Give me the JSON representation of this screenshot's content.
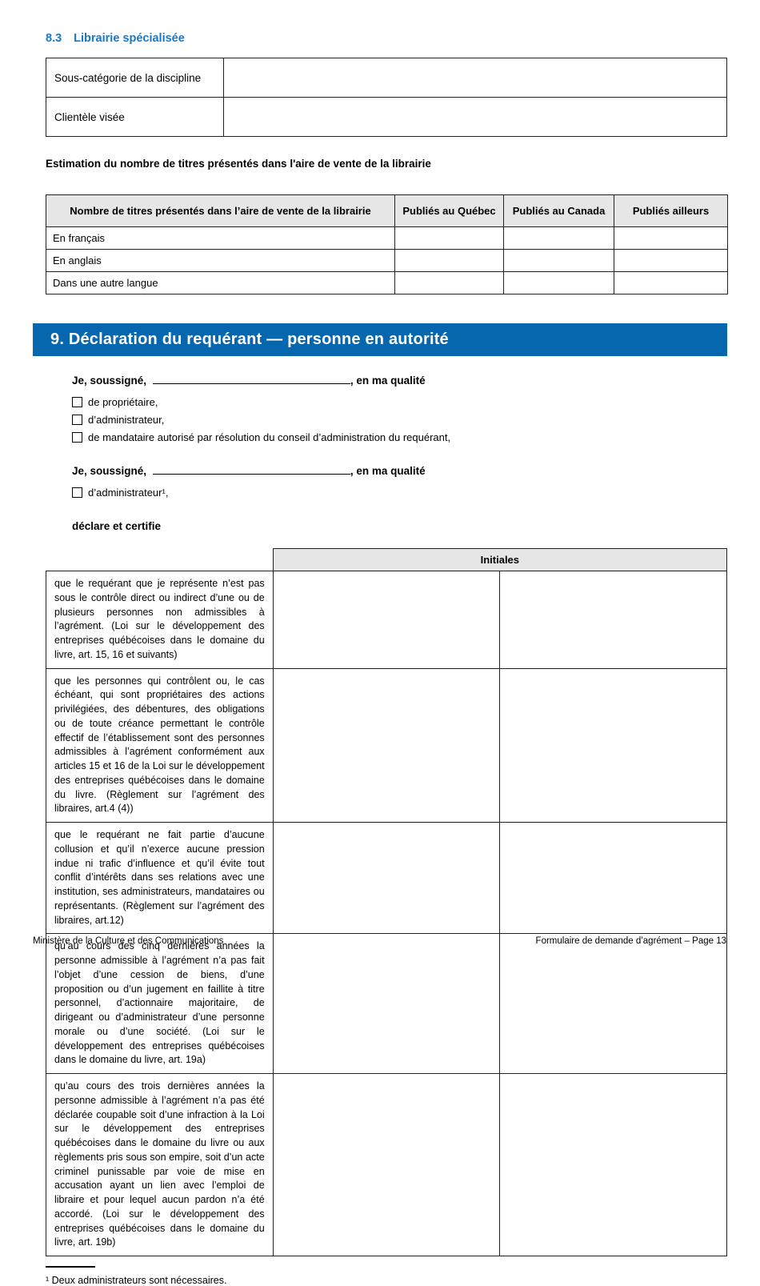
{
  "section_heading": {
    "number": "8.3",
    "title": "Librairie spécialisée"
  },
  "specialty_table": {
    "rows": [
      {
        "label": "Sous-catégorie de la discipline",
        "value": ""
      },
      {
        "label": "Clientèle visée",
        "value": ""
      }
    ]
  },
  "estimation_heading": "Estimation du nombre de titres présentés dans l'aire de vente de la librairie",
  "titles_table": {
    "headers": [
      "Nombre de titres présentés dans l’aire de vente de la librairie",
      "Publiés au Québec",
      "Publiés au Canada",
      "Publiés ailleurs"
    ],
    "rows": [
      {
        "label": "En français",
        "quebec": "",
        "canada": "",
        "ailleurs": ""
      },
      {
        "label": "En anglais",
        "quebec": "",
        "canada": "",
        "ailleurs": ""
      },
      {
        "label": "Dans une autre langue",
        "quebec": "",
        "canada": "",
        "ailleurs": ""
      }
    ]
  },
  "section9": {
    "banner": "9. Déclaration du requérant — personne en autorité",
    "declarant1": {
      "prefix": "Je, soussigné,",
      "signature_value": "",
      "suffix": ", en ma qualité",
      "options": [
        {
          "label": "de propriétaire,",
          "checked": false
        },
        {
          "label": "d’administrateur,",
          "checked": false
        },
        {
          "label": "de mandataire autorisé par résolution du conseil d’administration du requérant,",
          "checked": false
        }
      ]
    },
    "declarant2": {
      "prefix": "Je, soussigné,",
      "signature_value": "",
      "suffix": ", en ma qualité",
      "options": [
        {
          "label": "d’administrateur¹,",
          "checked": false
        }
      ]
    },
    "declare_label": "déclare et certifie",
    "initiales_header": "Initiales",
    "declarations": [
      {
        "text": "que le requérant que je représente n’est pas sous le contrôle direct ou indirect d’une ou de plusieurs personnes non admissibles à l’agrément. (Loi sur le développement des entreprises québécoises dans le domaine du livre, art. 15, 16 et suivants)",
        "initials_1": "",
        "initials_2": ""
      },
      {
        "text": "que les personnes qui contrôlent ou, le cas échéant, qui sont propriétaires des actions privilégiées, des débentures, des obligations ou de toute créance permettant le contrôle effectif de l’établissement sont des personnes admissibles à l’agrément conformément aux articles 15 et 16 de la Loi sur le développement des entreprises québécoises dans le domaine du livre. (Règlement sur l’agrément des libraires, art.4 (4))",
        "initials_1": "",
        "initials_2": ""
      },
      {
        "text": "que le requérant ne fait partie d’aucune collusion et qu’il n’exerce aucune pression indue ni trafic d’influence et qu’il évite tout conflit d’intérêts dans ses relations avec une institution, ses administrateurs, mandataires ou représentants. (Règlement sur l’agrément des libraires, art.12)",
        "initials_1": "",
        "initials_2": ""
      },
      {
        "text": "qu’au cours des cinq dernières années la personne admissible à l’agrément n’a pas fait l’objet d’une cession de biens, d’une proposition ou d’un jugement en faillite à titre personnel, d’actionnaire majoritaire, de dirigeant ou d’administrateur d’une personne morale ou d’une société. (Loi sur le développement des entreprises québécoises dans le domaine du livre, art. 19a)",
        "initials_1": "",
        "initials_2": ""
      },
      {
        "text": "qu’au cours des trois dernières années la personne admissible à l’agrément n’a pas été déclarée coupable soit d’une infraction à la Loi sur le développement des entreprises québécoises dans le domaine du livre ou aux règlements pris sous son empire, soit d’un acte criminel punissable par voie de mise en accusation ayant un lien avec l’emploi de libraire et pour lequel aucun pardon n’a été accordé. (Loi sur le développement des entreprises québécoises dans le domaine du livre, art. 19b)",
        "initials_1": "",
        "initials_2": ""
      }
    ]
  },
  "footnote": "¹ Deux administrateurs sont nécessaires.",
  "footer": {
    "left": "Ministère de la Culture et des Communications",
    "right": "Formulaire de demande d’agrément – Page 13"
  },
  "colors": {
    "banner_blue": "#0767ae",
    "heading_blue": "#1878c8",
    "header_gray": "#e6e6e6"
  }
}
